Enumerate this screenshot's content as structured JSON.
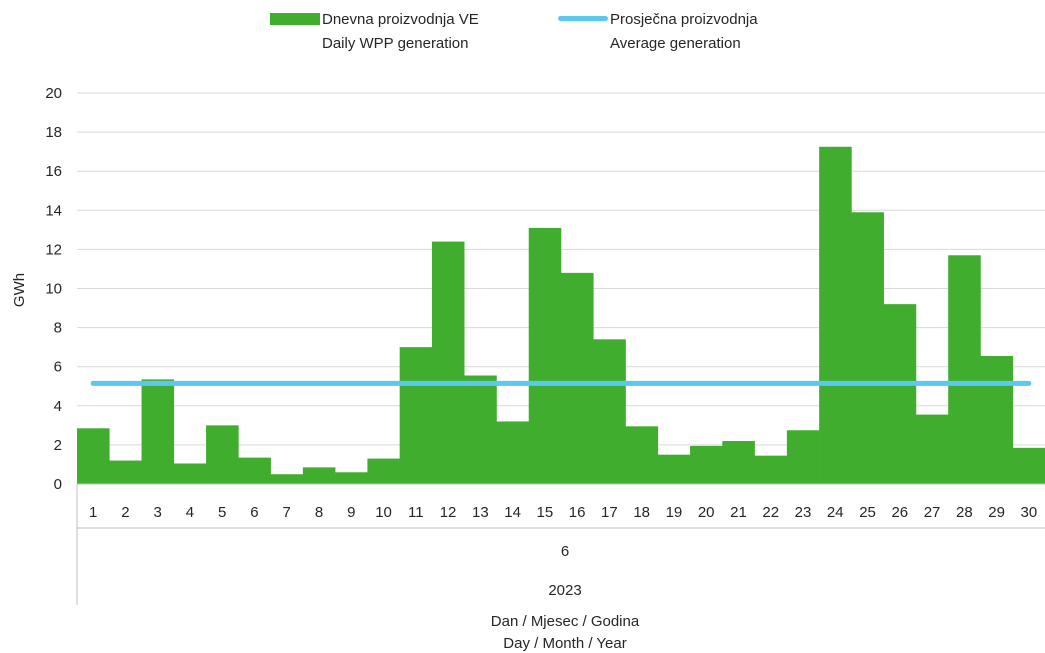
{
  "legend": {
    "bar_label_1": "Dnevna proizvodnja VE",
    "bar_label_2": "Daily WPP generation",
    "line_label_1": "Prosječna proizvodnja",
    "line_label_2": "Average generation"
  },
  "colors": {
    "bar": "#41ad2e",
    "average_line": "#5bc8ee",
    "grid": "#d9d9d9",
    "axis": "#bfbfbf"
  },
  "chart_data": {
    "type": "bar",
    "ylabel": "GWh",
    "ylim": [
      0,
      20
    ],
    "yticks": [
      0,
      2,
      4,
      6,
      8,
      10,
      12,
      14,
      16,
      18,
      20
    ],
    "grid": true,
    "legend_position": "top",
    "categories": [
      "1",
      "2",
      "3",
      "4",
      "5",
      "6",
      "7",
      "8",
      "9",
      "10",
      "11",
      "12",
      "13",
      "14",
      "15",
      "16",
      "17",
      "18",
      "19",
      "20",
      "21",
      "22",
      "23",
      "24",
      "25",
      "26",
      "27",
      "28",
      "29",
      "30"
    ],
    "series": [
      {
        "name": "Dnevna proizvodnja VE / Daily WPP generation",
        "type": "bar",
        "values": [
          2.85,
          1.2,
          5.35,
          1.05,
          3.0,
          1.35,
          0.5,
          0.85,
          0.6,
          1.3,
          7.0,
          12.4,
          5.55,
          3.2,
          13.1,
          10.8,
          7.4,
          2.95,
          1.5,
          1.95,
          2.2,
          1.45,
          2.75,
          17.25,
          13.9,
          9.2,
          3.55,
          11.7,
          6.55,
          1.85
        ]
      },
      {
        "name": "Prosječna proizvodnja / Average generation",
        "type": "line",
        "value": 5.15
      }
    ],
    "month_label": "6",
    "year_label": "2023",
    "xlabel_line1": "Dan / Mjesec / Godina",
    "xlabel_line2": "Day / Month / Year"
  }
}
